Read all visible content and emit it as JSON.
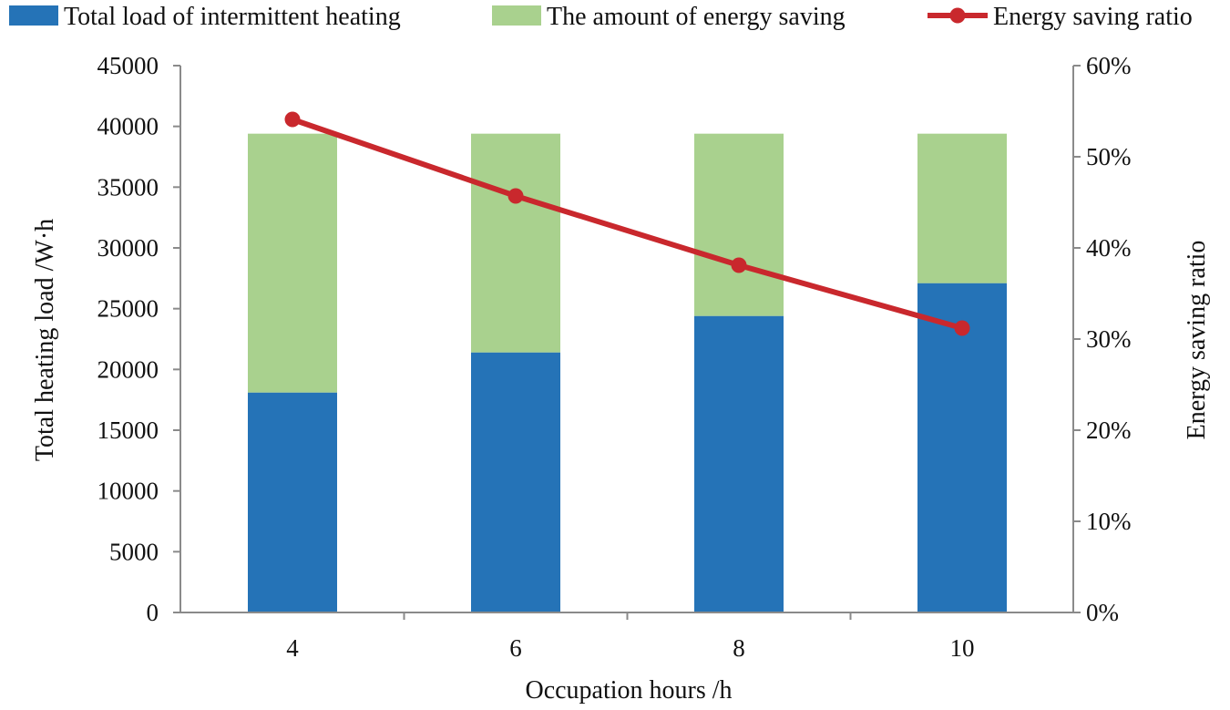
{
  "chart_data": {
    "type": "bar",
    "stacked": true,
    "categories": [
      "4",
      "6",
      "8",
      "10"
    ],
    "series": [
      {
        "name": "Total load of intermittent heating",
        "kind": "bar",
        "axis": "left",
        "color": "#2573b7",
        "values": [
          18100,
          21400,
          24400,
          27100
        ]
      },
      {
        "name": "The amount of energy saving",
        "kind": "bar",
        "axis": "left",
        "color": "#a9d18e",
        "values": [
          21300,
          18000,
          15000,
          12300
        ]
      },
      {
        "name": "Energy saving ratio",
        "kind": "line",
        "axis": "right",
        "color": "#c9282d",
        "values": [
          54.1,
          45.7,
          38.1,
          31.2
        ]
      }
    ],
    "xlabel": "Occupation hours /h",
    "ylabel": "Total heating load /W·h",
    "y2label": "Energy saving ratio",
    "ylim": [
      0,
      45000
    ],
    "y2lim": [
      0,
      60
    ],
    "yticks": [
      "0",
      "5000",
      "10000",
      "15000",
      "20000",
      "25000",
      "30000",
      "35000",
      "40000",
      "45000"
    ],
    "y2ticks": [
      "0%",
      "10%",
      "20%",
      "30%",
      "40%",
      "50%",
      "60%"
    ],
    "legend_position": "top",
    "grid": false
  }
}
